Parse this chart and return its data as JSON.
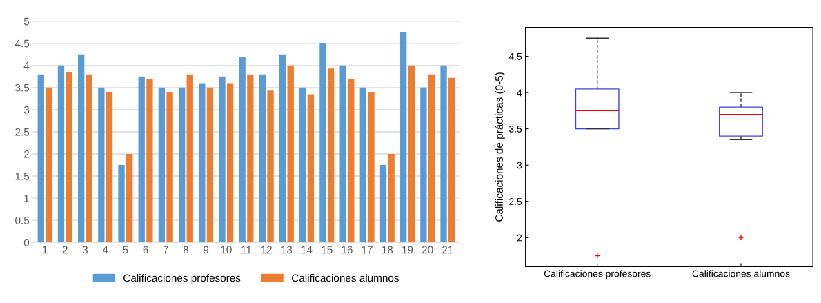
{
  "chart_data": [
    {
      "type": "bar",
      "categories": [
        "1",
        "2",
        "3",
        "4",
        "5",
        "6",
        "7",
        "8",
        "9",
        "10",
        "11",
        "12",
        "13",
        "14",
        "15",
        "16",
        "17",
        "18",
        "19",
        "20",
        "21"
      ],
      "series": [
        {
          "name": "Calificaciones profesores",
          "color": "#5b9bd5",
          "values": [
            3.8,
            4.0,
            4.25,
            3.5,
            1.75,
            3.75,
            3.5,
            3.5,
            3.6,
            3.75,
            4.2,
            3.8,
            4.25,
            3.5,
            4.5,
            4.0,
            3.5,
            1.75,
            4.75,
            3.5,
            4.0
          ]
        },
        {
          "name": "Calificaciones alumnos",
          "color": "#ed7d31",
          "values": [
            3.5,
            3.85,
            3.8,
            3.4,
            2.0,
            3.7,
            3.4,
            3.8,
            3.5,
            3.6,
            3.8,
            3.43,
            4.0,
            3.35,
            3.93,
            3.7,
            3.4,
            2.0,
            4.0,
            3.8,
            3.72
          ]
        }
      ],
      "ylim": [
        0,
        5
      ],
      "yticks": [
        0,
        0.5,
        1,
        1.5,
        2,
        2.5,
        3,
        3.5,
        4,
        4.5,
        5
      ],
      "grid": "y",
      "legend": "bottom"
    },
    {
      "type": "box",
      "categories": [
        "Calificaciones profesores",
        "Calificaciones alumnos"
      ],
      "ylabel": "Calificaciones de prácticas (0-5)",
      "series": [
        {
          "color": "#4040e0",
          "boxes": [
            {
              "low": 3.5,
              "q1": 3.5,
              "median": 3.75,
              "q3": 4.05,
              "high": 4.75,
              "outliers": [
                1.75
              ]
            },
            {
              "low": 3.35,
              "q1": 3.4,
              "median": 3.7,
              "q3": 3.8,
              "high": 4.0,
              "outliers": [
                2.0
              ]
            }
          ]
        }
      ],
      "ylim": [
        1.6,
        4.9
      ],
      "yticks": [
        2,
        2.5,
        3,
        3.5,
        4,
        4.5
      ],
      "grid": false
    }
  ]
}
